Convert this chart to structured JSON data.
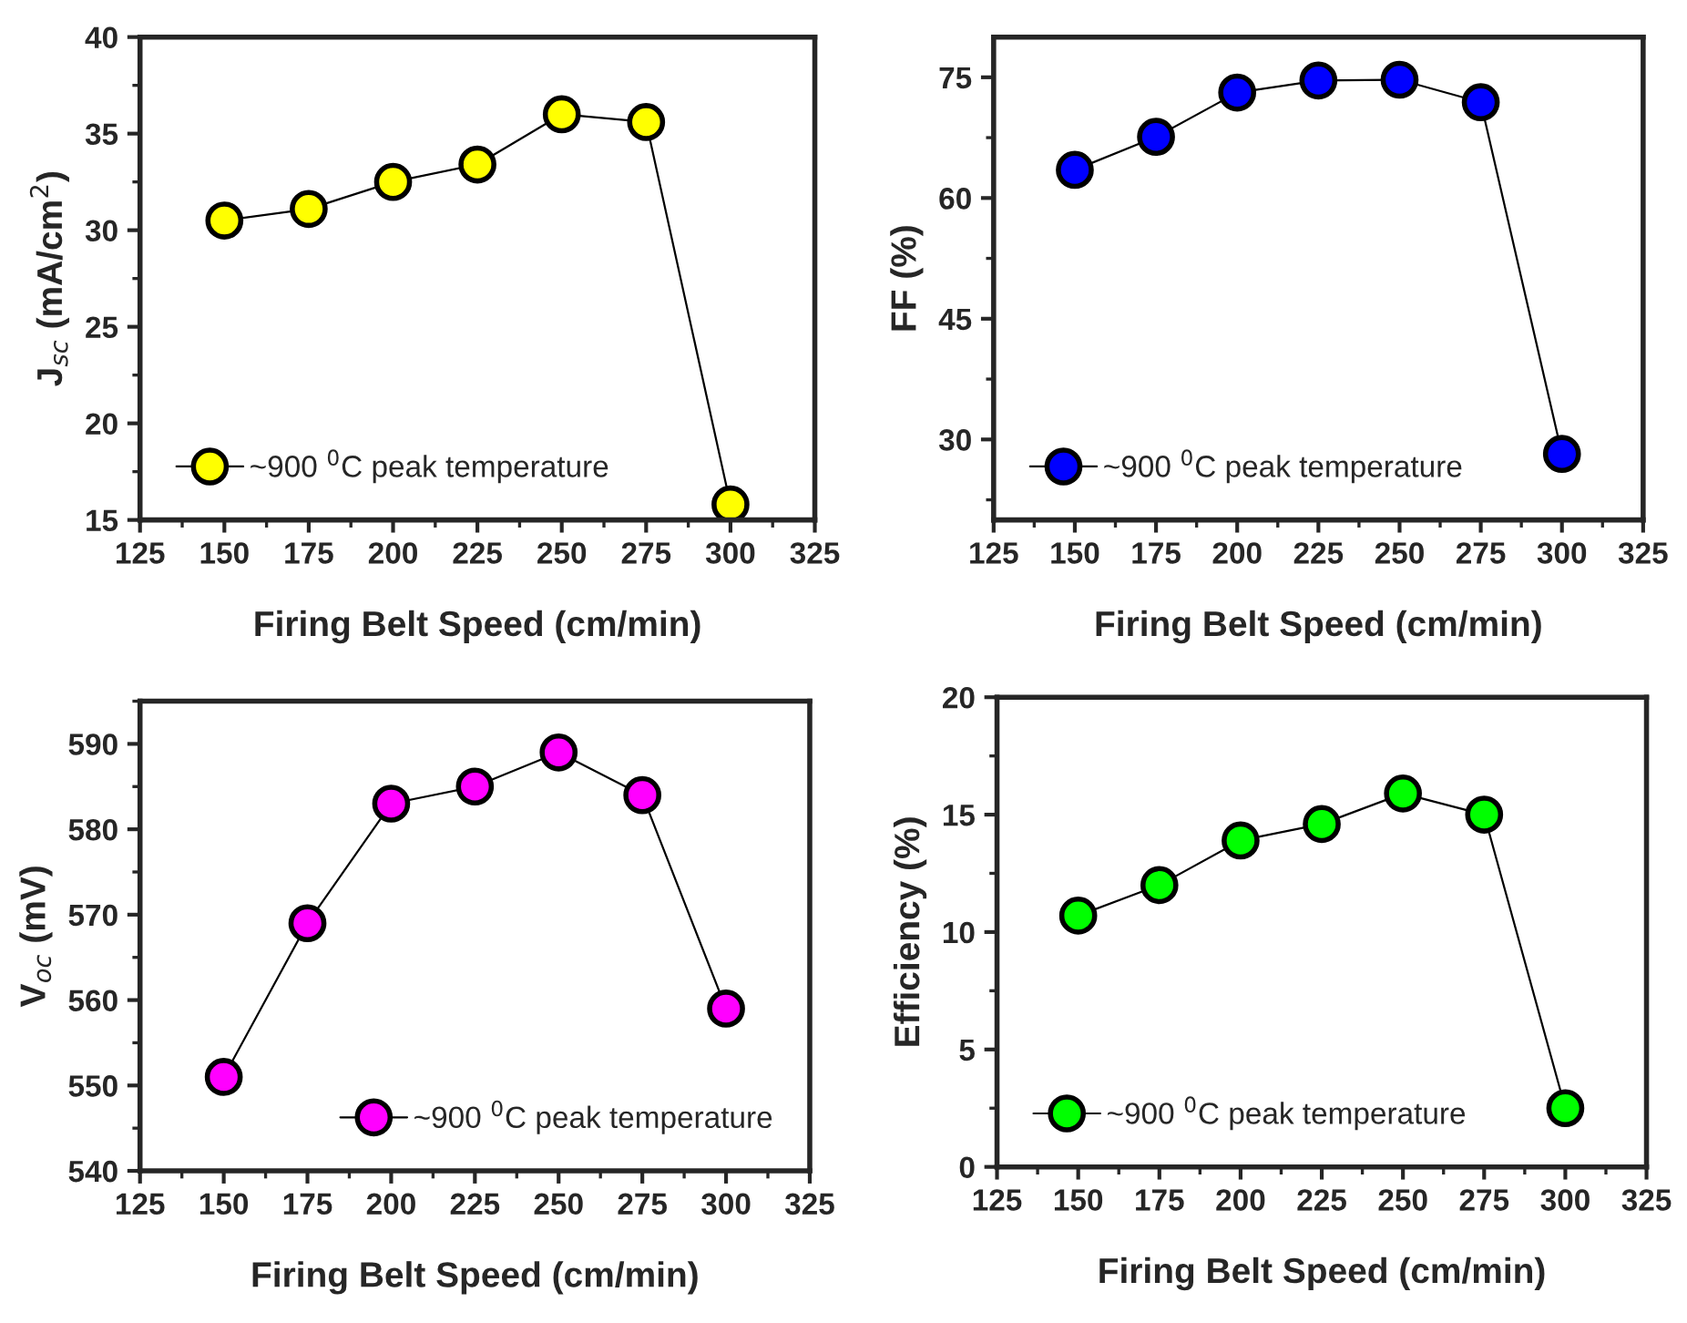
{
  "chart_data": [
    {
      "type": "line",
      "x": [
        150,
        175,
        200,
        225,
        250,
        275,
        300
      ],
      "xlabel": "Firing Belt Speed (cm/min)",
      "ylabel": "J$_{sc}$ (mA/cm$^{2}$)",
      "xlim": [
        125,
        325
      ],
      "xticks": [
        125,
        150,
        175,
        200,
        225,
        250,
        275,
        300,
        325
      ],
      "ylim": [
        15,
        40
      ],
      "yticks": [
        15,
        20,
        25,
        30,
        35,
        40
      ],
      "marker": "circle",
      "line_style": "solid",
      "legend": "bottom left",
      "grid": false,
      "series": [
        {
          "name": "~900 $^{0}$C peak temperature",
          "color": "#ffff00",
          "values": [
            30.5,
            31.1,
            32.5,
            33.4,
            36.0,
            35.6,
            15.8
          ]
        }
      ]
    },
    {
      "type": "line",
      "x": [
        150,
        175,
        200,
        225,
        250,
        275,
        300
      ],
      "xlabel": "Firing Belt Speed (cm/min)",
      "ylabel": "FF (%)",
      "xlim": [
        125,
        325
      ],
      "xticks": [
        125,
        150,
        175,
        200,
        225,
        250,
        275,
        300,
        325
      ],
      "ylim": [
        20,
        80
      ],
      "yticks": [
        30,
        45,
        60,
        75
      ],
      "marker": "circle",
      "line_style": "solid",
      "legend": "bottom left",
      "grid": false,
      "series": [
        {
          "name": "~900 $^{0}$C peak temperature",
          "color": "#0000ff",
          "values": [
            63.5,
            67.6,
            73.1,
            74.6,
            74.7,
            71.9,
            28.2
          ]
        }
      ]
    },
    {
      "type": "line",
      "x": [
        150,
        175,
        200,
        225,
        250,
        275,
        300
      ],
      "xlabel": "Firing Belt Speed (cm/min)",
      "ylabel": "V$_{oc}$ (mV)",
      "xlim": [
        125,
        325
      ],
      "xticks": [
        125,
        150,
        175,
        200,
        225,
        250,
        275,
        300,
        325
      ],
      "ylim": [
        540,
        595
      ],
      "yticks": [
        540,
        550,
        560,
        570,
        580,
        590
      ],
      "marker": "circle",
      "line_style": "solid",
      "legend": "bottom right",
      "grid": false,
      "series": [
        {
          "name": "~900 $^{0}$C peak temperature",
          "color": "#ff00ff",
          "values": [
            551,
            569,
            583,
            585,
            589,
            584,
            559
          ]
        }
      ]
    },
    {
      "type": "line",
      "x": [
        150,
        175,
        200,
        225,
        250,
        275,
        300
      ],
      "xlabel": "Firing Belt Speed (cm/min)",
      "ylabel": "Efficiency (%)",
      "xlim": [
        125,
        325
      ],
      "xticks": [
        125,
        150,
        175,
        200,
        225,
        250,
        275,
        300,
        325
      ],
      "ylim": [
        0,
        20
      ],
      "yticks": [
        0,
        5,
        10,
        15,
        20
      ],
      "marker": "circle",
      "line_style": "solid",
      "legend": "bottom left",
      "grid": false,
      "series": [
        {
          "name": "~900 $^{0}$C peak temperature",
          "color": "#00ff00",
          "values": [
            10.7,
            12.0,
            13.9,
            14.6,
            15.9,
            15.0,
            2.5
          ]
        }
      ]
    }
  ]
}
